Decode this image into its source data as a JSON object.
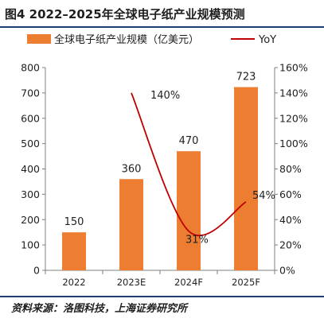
{
  "figure": {
    "title": "图4  2022–2025年全球电子纸产业规模预测",
    "source": "资料来源：洛图科技，上海证券研究所"
  },
  "chart_data": {
    "type": "bar",
    "categories": [
      "2022",
      "2023E",
      "2024F",
      "2025F"
    ],
    "series": [
      {
        "name": "全球电子纸产业规模（亿美元）",
        "type": "bar",
        "axis": "left",
        "values": [
          150,
          360,
          470,
          723
        ],
        "labels": [
          "150",
          "360",
          "470",
          "723"
        ]
      },
      {
        "name": "YoY",
        "type": "line",
        "axis": "right",
        "values": [
          null,
          1.4,
          0.31,
          0.54
        ],
        "labels": [
          "",
          "140%",
          "31%",
          "54%"
        ]
      }
    ],
    "left_axis": {
      "ylim": [
        0,
        800
      ],
      "ticks": [
        0,
        100,
        200,
        300,
        400,
        500,
        600,
        700,
        800
      ],
      "tick_labels": [
        "0",
        "100",
        "200",
        "300",
        "400",
        "500",
        "600",
        "700",
        "800"
      ]
    },
    "right_axis": {
      "ylim": [
        0,
        1.6
      ],
      "ticks": [
        0,
        0.2,
        0.4,
        0.6,
        0.8,
        1.0,
        1.2,
        1.4,
        1.6
      ],
      "tick_labels": [
        "0%",
        "20%",
        "40%",
        "60%",
        "80%",
        "100%",
        "120%",
        "140%",
        "160%"
      ]
    },
    "legend": {
      "position": "top"
    },
    "grid": false,
    "colors": {
      "bar": "#ed7d31",
      "line": "#c00000",
      "axis": "#7f7f7f",
      "text": "#1f1f1f"
    }
  }
}
